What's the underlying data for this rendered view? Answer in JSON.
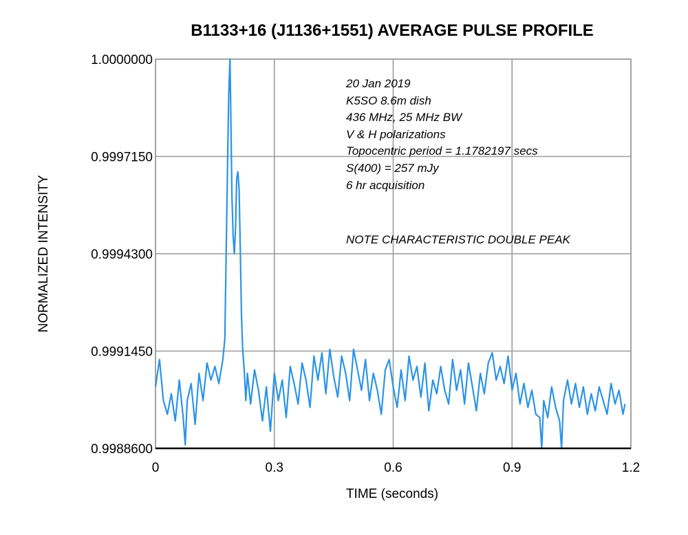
{
  "chart_data": {
    "type": "line",
    "title": "B1133+16 (J1136+1551) AVERAGE PULSE PROFILE",
    "xlabel": "TIME (seconds)",
    "ylabel": "NORMALIZED INTENSITY",
    "xlim": [
      0,
      1.2
    ],
    "ylim": [
      0.99886,
      1.0
    ],
    "x_ticks": [
      "0",
      "0.3",
      "0.6",
      "0.9",
      "1.2"
    ],
    "x_tick_values": [
      0,
      0.3,
      0.6,
      0.9,
      1.2
    ],
    "y_ticks": [
      "1.0000000",
      "0.9997150",
      "0.9994300",
      "0.9991450",
      "0.9988600"
    ],
    "y_tick_values": [
      1.0,
      0.999715,
      0.99943,
      0.999145,
      0.99886
    ],
    "grid": true,
    "line_color": "#2b93e8",
    "annotations": [
      "20 Jan 2019",
      "K5SO 8.6m dish",
      "436 MHz, 25 MHz BW",
      "V & H polarizations",
      "Topocentric period = 1.1782197 secs",
      "S(400) = 257 mJy",
      "6 hr acquisition",
      "NOTE CHARACTERISTIC DOUBLE PEAK"
    ],
    "series": [
      {
        "x": [
          0.0,
          0.01,
          0.02,
          0.03,
          0.04,
          0.05,
          0.06,
          0.07,
          0.075,
          0.08,
          0.09,
          0.1,
          0.11,
          0.12,
          0.13,
          0.14,
          0.15,
          0.16,
          0.17,
          0.175,
          0.178,
          0.182,
          0.185,
          0.188,
          0.19,
          0.193,
          0.196,
          0.199,
          0.202,
          0.205,
          0.208,
          0.211,
          0.214,
          0.217,
          0.22,
          0.224,
          0.228,
          0.232,
          0.24,
          0.25,
          0.26,
          0.27,
          0.28,
          0.29,
          0.3,
          0.31,
          0.32,
          0.33,
          0.34,
          0.35,
          0.36,
          0.37,
          0.38,
          0.39,
          0.4,
          0.41,
          0.42,
          0.43,
          0.44,
          0.45,
          0.46,
          0.47,
          0.48,
          0.49,
          0.5,
          0.51,
          0.52,
          0.53,
          0.54,
          0.55,
          0.56,
          0.57,
          0.58,
          0.59,
          0.6,
          0.61,
          0.62,
          0.63,
          0.64,
          0.65,
          0.66,
          0.67,
          0.68,
          0.69,
          0.7,
          0.71,
          0.72,
          0.73,
          0.74,
          0.75,
          0.76,
          0.77,
          0.78,
          0.79,
          0.8,
          0.81,
          0.82,
          0.83,
          0.84,
          0.85,
          0.86,
          0.87,
          0.88,
          0.89,
          0.9,
          0.91,
          0.92,
          0.93,
          0.94,
          0.95,
          0.96,
          0.97,
          0.975,
          0.98,
          0.99,
          1.0,
          1.01,
          1.02,
          1.025,
          1.03,
          1.04,
          1.05,
          1.06,
          1.07,
          1.08,
          1.09,
          1.1,
          1.11,
          1.12,
          1.13,
          1.14,
          1.15,
          1.16,
          1.17,
          1.18,
          1.185
        ],
        "y": [
          0.99904,
          0.99912,
          0.999,
          0.99896,
          0.99902,
          0.99894,
          0.99906,
          0.99895,
          0.99887,
          0.999,
          0.99905,
          0.99893,
          0.99908,
          0.999,
          0.99911,
          0.99906,
          0.9991,
          0.99905,
          0.99912,
          0.99918,
          0.9994,
          0.9997,
          0.9999,
          1.0,
          0.99985,
          0.9996,
          0.99948,
          0.99943,
          0.9995,
          0.99965,
          0.99967,
          0.99962,
          0.99945,
          0.99925,
          0.99915,
          0.99909,
          0.999,
          0.99908,
          0.99899,
          0.99909,
          0.99903,
          0.99894,
          0.99904,
          0.99891,
          0.99908,
          0.999,
          0.99906,
          0.99895,
          0.9991,
          0.99905,
          0.99899,
          0.99911,
          0.99906,
          0.99898,
          0.99913,
          0.99906,
          0.99914,
          0.99902,
          0.99915,
          0.99907,
          0.99901,
          0.99913,
          0.99908,
          0.999,
          0.99915,
          0.99909,
          0.99903,
          0.99912,
          0.999,
          0.99908,
          0.99903,
          0.99896,
          0.99909,
          0.99912,
          0.99904,
          0.99898,
          0.99909,
          0.999,
          0.99913,
          0.99906,
          0.9991,
          0.99901,
          0.99911,
          0.99897,
          0.99906,
          0.99902,
          0.9991,
          0.99903,
          0.99899,
          0.99912,
          0.99903,
          0.99909,
          0.99899,
          0.99911,
          0.99904,
          0.99897,
          0.99908,
          0.99902,
          0.99911,
          0.99914,
          0.99906,
          0.9991,
          0.99905,
          0.99913,
          0.99903,
          0.99908,
          0.99899,
          0.99905,
          0.99898,
          0.99903,
          0.99896,
          0.99895,
          0.99886,
          0.999,
          0.99895,
          0.99904,
          0.99898,
          0.99894,
          0.99886,
          0.999,
          0.99906,
          0.99899,
          0.99905,
          0.99898,
          0.99904,
          0.99896,
          0.99902,
          0.99897,
          0.99904,
          0.999,
          0.99896,
          0.99905,
          0.99899,
          0.99903,
          0.99896,
          0.99899
        ]
      }
    ]
  }
}
